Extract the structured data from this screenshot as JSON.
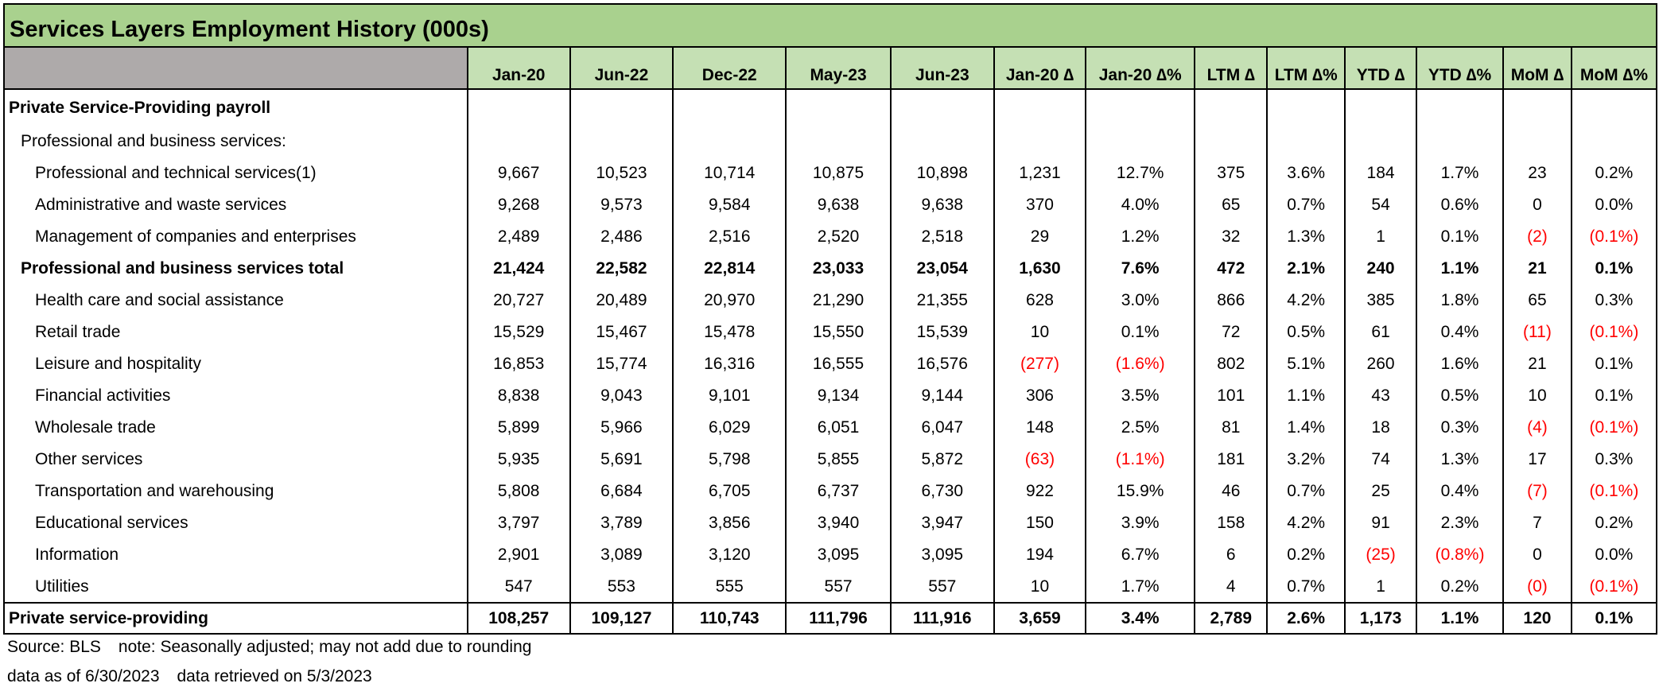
{
  "title": "Services Layers Employment History (000s)",
  "columns": [
    "Jan-20",
    "Jun-22",
    "Dec-22",
    "May-23",
    "Jun-23",
    "Jan-20 ∆",
    "Jan-20 ∆%",
    "LTM ∆",
    "LTM ∆%",
    "YTD ∆",
    "YTD ∆%",
    "MoM ∆",
    "MoM ∆%"
  ],
  "rows": [
    {
      "label": "Private Service-Providing payroll",
      "values": [
        "",
        "",
        "",
        "",
        "",
        "",
        "",
        "",
        "",
        "",
        "",
        "",
        ""
      ]
    },
    {
      "label": "Professional and business services:",
      "values": [
        "",
        "",
        "",
        "",
        "",
        "",
        "",
        "",
        "",
        "",
        "",
        "",
        ""
      ]
    },
    {
      "label": "Professional and technical services(1)",
      "values": [
        "9,667",
        "10,523",
        "10,714",
        "10,875",
        "10,898",
        "1,231",
        "12.7%",
        "375",
        "3.6%",
        "184",
        "1.7%",
        "23",
        "0.2%"
      ]
    },
    {
      "label": "Administrative and waste services",
      "values": [
        "9,268",
        "9,573",
        "9,584",
        "9,638",
        "9,638",
        "370",
        "4.0%",
        "65",
        "0.7%",
        "54",
        "0.6%",
        "0",
        "0.0%"
      ]
    },
    {
      "label": "Management of companies and enterprises",
      "values": [
        "2,489",
        "2,486",
        "2,516",
        "2,520",
        "2,518",
        "29",
        "1.2%",
        "32",
        "1.3%",
        "1",
        "0.1%",
        "(2)",
        "(0.1%)"
      ]
    },
    {
      "label": "Professional and business services total",
      "values": [
        "21,424",
        "22,582",
        "22,814",
        "23,033",
        "23,054",
        "1,630",
        "7.6%",
        "472",
        "2.1%",
        "240",
        "1.1%",
        "21",
        "0.1%"
      ]
    },
    {
      "label": "Health care and social assistance",
      "values": [
        "20,727",
        "20,489",
        "20,970",
        "21,290",
        "21,355",
        "628",
        "3.0%",
        "866",
        "4.2%",
        "385",
        "1.8%",
        "65",
        "0.3%"
      ]
    },
    {
      "label": "Retail trade",
      "values": [
        "15,529",
        "15,467",
        "15,478",
        "15,550",
        "15,539",
        "10",
        "0.1%",
        "72",
        "0.5%",
        "61",
        "0.4%",
        "(11)",
        "(0.1%)"
      ]
    },
    {
      "label": "Leisure and hospitality",
      "values": [
        "16,853",
        "15,774",
        "16,316",
        "16,555",
        "16,576",
        "(277)",
        "(1.6%)",
        "802",
        "5.1%",
        "260",
        "1.6%",
        "21",
        "0.1%"
      ]
    },
    {
      "label": "Financial activities",
      "values": [
        "8,838",
        "9,043",
        "9,101",
        "9,134",
        "9,144",
        "306",
        "3.5%",
        "101",
        "1.1%",
        "43",
        "0.5%",
        "10",
        "0.1%"
      ]
    },
    {
      "label": "Wholesale trade",
      "values": [
        "5,899",
        "5,966",
        "6,029",
        "6,051",
        "6,047",
        "148",
        "2.5%",
        "81",
        "1.4%",
        "18",
        "0.3%",
        "(4)",
        "(0.1%)"
      ]
    },
    {
      "label": "Other services",
      "values": [
        "5,935",
        "5,691",
        "5,798",
        "5,855",
        "5,872",
        "(63)",
        "(1.1%)",
        "181",
        "3.2%",
        "74",
        "1.3%",
        "17",
        "0.3%"
      ]
    },
    {
      "label": "Transportation and warehousing",
      "values": [
        "5,808",
        "6,684",
        "6,705",
        "6,737",
        "6,730",
        "922",
        "15.9%",
        "46",
        "0.7%",
        "25",
        "0.4%",
        "(7)",
        "(0.1%)"
      ]
    },
    {
      "label": "Educational services",
      "values": [
        "3,797",
        "3,789",
        "3,856",
        "3,940",
        "3,947",
        "150",
        "3.9%",
        "158",
        "4.2%",
        "91",
        "2.3%",
        "7",
        "0.2%"
      ]
    },
    {
      "label": "Information",
      "values": [
        "2,901",
        "3,089",
        "3,120",
        "3,095",
        "3,095",
        "194",
        "6.7%",
        "6",
        "0.2%",
        "(25)",
        "(0.8%)",
        "0",
        "0.0%"
      ]
    },
    {
      "label": "Utilities",
      "values": [
        "547",
        "553",
        "555",
        "557",
        "557",
        "10",
        "1.7%",
        "4",
        "0.7%",
        "1",
        "0.2%",
        "(0)",
        "(0.1%)"
      ]
    },
    {
      "label": "Private service-providing",
      "values": [
        "108,257",
        "109,127",
        "110,743",
        "111,796",
        "111,916",
        "3,659",
        "3.4%",
        "2,789",
        "2.6%",
        "1,173",
        "1.1%",
        "120",
        "0.1%"
      ]
    }
  ],
  "footer": {
    "source": "Source: BLS",
    "note": "note: Seasonally adjusted; may not add due to rounding",
    "asof": "data as of 6/30/2023",
    "retrieved": "data retrieved on 5/3/2023"
  },
  "colors": {
    "title_bg": "#a9d18e",
    "header_bg": "#c5e0b4",
    "corner_bg": "#aeaaaa",
    "negative": "#ff0000"
  }
}
